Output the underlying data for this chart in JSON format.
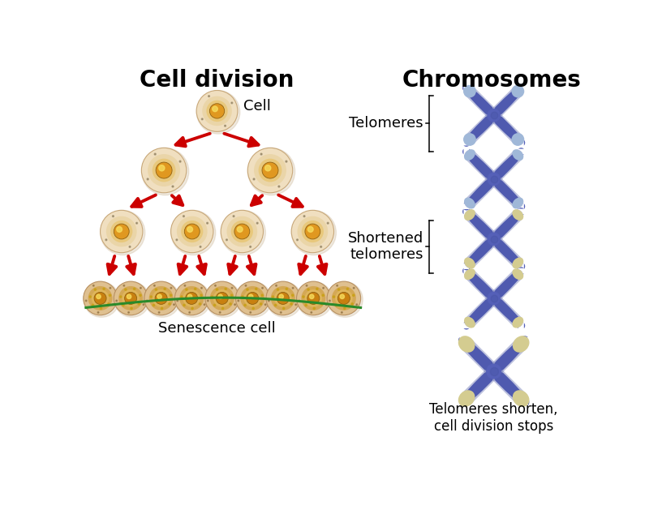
{
  "title_left": "Cell division",
  "title_right": "Chromosomes",
  "label_cell": "Cell",
  "label_senescence": "Senescence cell",
  "label_telomeres": "Telomeres",
  "label_shortened": "Shortened\ntelomeres",
  "label_stops": "Telomeres shorten,\ncell division stops",
  "bg_color": "#ffffff",
  "cell_outer_color": "#f0dfc0",
  "cell_mid_color": "#ead5a8",
  "cell_inner_color": "#dcc080",
  "cell_nucleus_color": "#e09820",
  "cell_nucleus_hi": "#f0c840",
  "cell_outer_edge": "#c8a87a",
  "arrow_color": "#cc0000",
  "green_curve_color": "#2a8a2a",
  "chrom_body_color": "#5560b8",
  "chrom_body_dark": "#4450a0",
  "chrom_tip_blue": "#a0b8d8",
  "chrom_tip_yellow": "#d4cc90",
  "title_fontsize": 20,
  "label_fontsize": 13,
  "small_fontsize": 12
}
